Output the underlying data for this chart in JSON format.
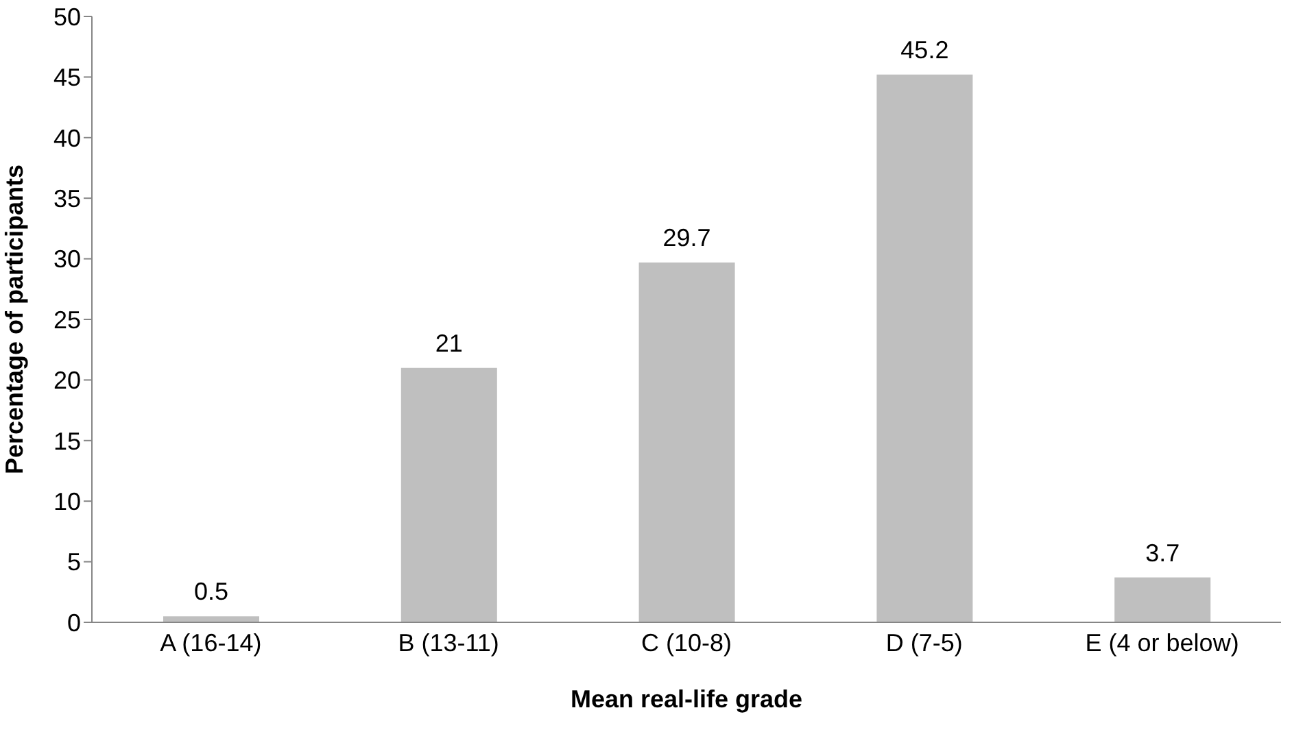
{
  "chart_data": {
    "type": "bar",
    "xlabel": "Mean real-life grade",
    "ylabel": "Percentage of participants",
    "categories": [
      "A (16-14)",
      "B (13-11)",
      "C (10-8)",
      "D (7-5)",
      "E (4 or below)"
    ],
    "values": [
      0.5,
      21,
      29.7,
      45.2,
      3.7
    ],
    "color": "#bfbfbf",
    "ylim": [
      0,
      50
    ],
    "yticks": [
      0,
      5,
      10,
      15,
      20,
      25,
      30,
      35,
      40,
      45,
      50
    ],
    "grid": false,
    "data_labels": true
  }
}
